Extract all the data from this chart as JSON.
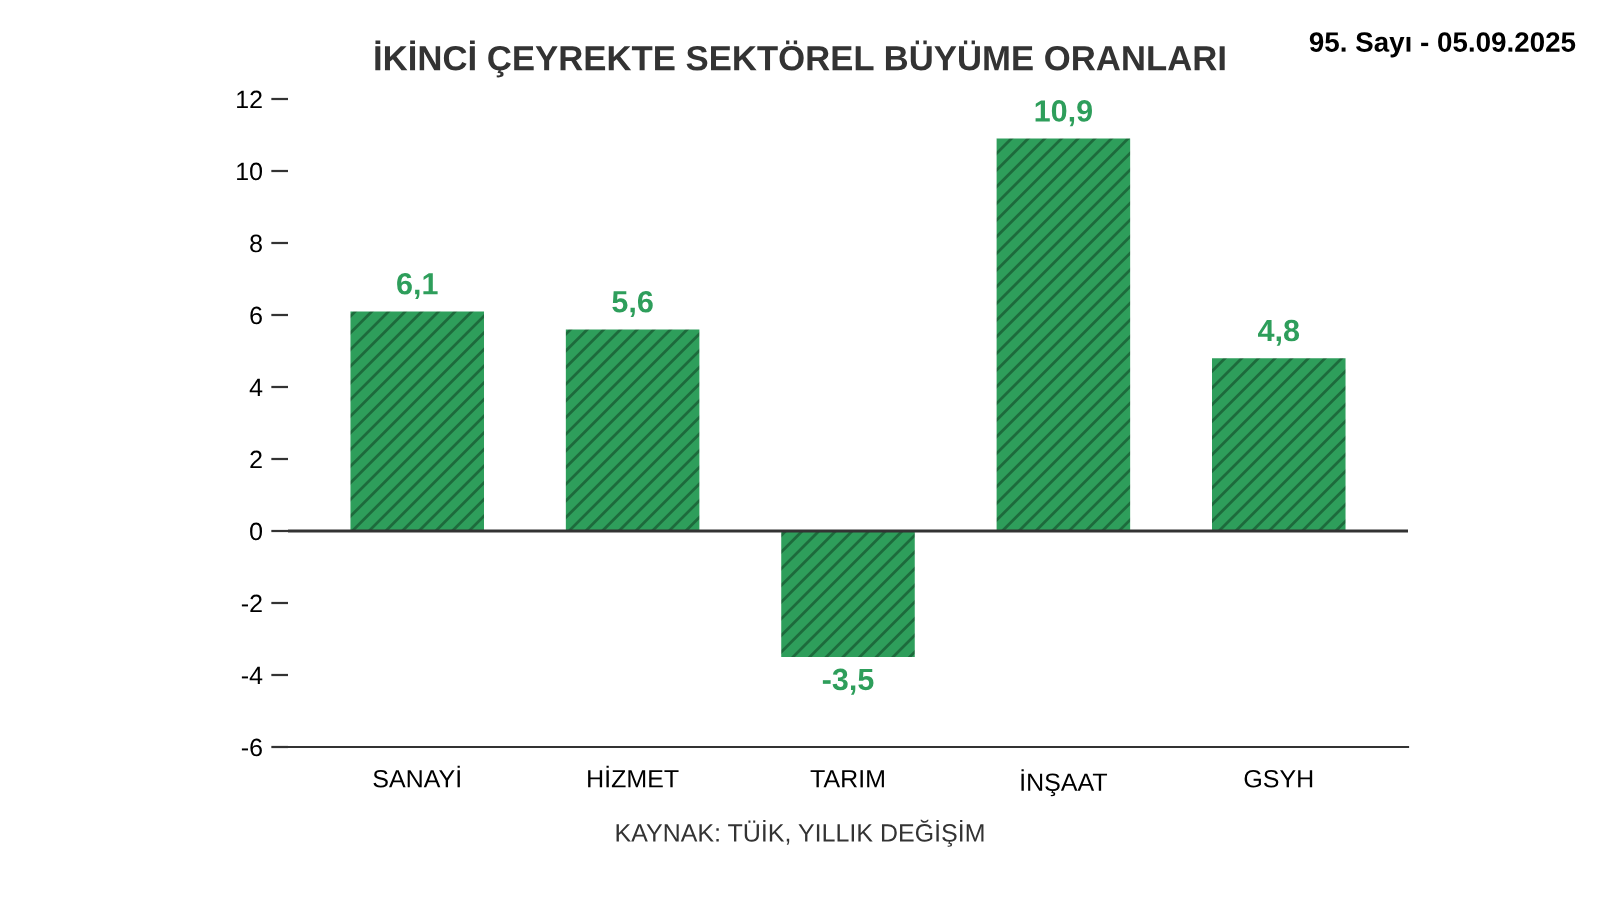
{
  "chart_data": {
    "type": "bar",
    "title": "İKİNCİ ÇEYREKTE SEKTÖREL BÜYÜME ORANLARI",
    "categories": [
      "SANAYİ",
      "HİZMET",
      "TARIM",
      "İNŞAAT",
      "GSYH"
    ],
    "values": [
      6.1,
      5.6,
      -3.5,
      10.9,
      4.8
    ],
    "value_labels": [
      "6,1",
      "5,6",
      "-3,5",
      "10,9",
      "4,8"
    ],
    "color": "#2e9e5b",
    "ylim": [
      -6,
      12
    ],
    "yticks": [
      {
        "value": -6,
        "label": "-6"
      },
      {
        "value": -4,
        "label": "-4"
      },
      {
        "value": -2,
        "label": "-2"
      },
      0,
      2,
      4,
      6,
      8,
      10,
      12
    ],
    "ref_lines": [
      {
        "axis": "y",
        "value": 0,
        "color": "#333333"
      }
    ],
    "grid": false,
    "annotations": [
      "KAYNAK: TÜİK, YILLIK DEĞİŞİM",
      "95. Sayı - 05.09.2025"
    ]
  }
}
